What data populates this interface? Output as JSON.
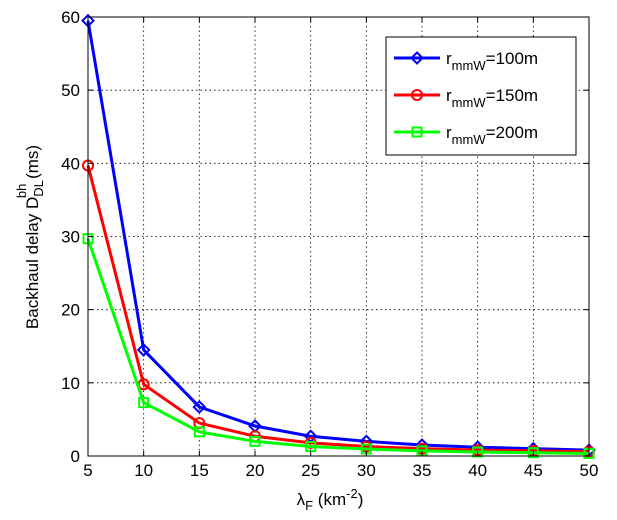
{
  "chart_data": {
    "type": "line",
    "x": [
      5,
      10,
      15,
      20,
      25,
      30,
      35,
      40,
      45,
      50
    ],
    "xlim": [
      5,
      50
    ],
    "ylim": [
      0,
      60
    ],
    "x_ticks": [
      "5",
      "10",
      "15",
      "20",
      "25",
      "30",
      "35",
      "40",
      "45",
      "50"
    ],
    "y_ticks": [
      "0",
      "10",
      "20",
      "30",
      "40",
      "50",
      "60"
    ],
    "xlabel": {
      "main": "λ",
      "sub": "F",
      "unit_open": " (km",
      "sup": "-2",
      "unit_close": ")"
    },
    "ylabel": {
      "main": "Backhaul delay D",
      "sub": "DL",
      "sup": "bh",
      "unit": " (ms)"
    },
    "grid": true,
    "legend_position": "top-right",
    "series": [
      {
        "name_main": "r",
        "name_sub": "mmW",
        "name_rest": "=100m",
        "color": "#0000ff",
        "marker": "diamond",
        "values": [
          59.5,
          14.5,
          6.7,
          4.1,
          2.7,
          2.0,
          1.5,
          1.2,
          1.0,
          0.8
        ]
      },
      {
        "name_main": "r",
        "name_sub": "mmW",
        "name_rest": "=150m",
        "color": "#ff0000",
        "marker": "circle",
        "values": [
          39.7,
          9.8,
          4.5,
          2.7,
          1.8,
          1.3,
          1.0,
          0.8,
          0.7,
          0.6
        ]
      },
      {
        "name_main": "r",
        "name_sub": "mmW",
        "name_rest": "=200m",
        "color": "#00ff00",
        "marker": "square",
        "values": [
          29.7,
          7.3,
          3.3,
          2.0,
          1.3,
          0.95,
          0.7,
          0.55,
          0.45,
          0.35
        ]
      }
    ]
  }
}
